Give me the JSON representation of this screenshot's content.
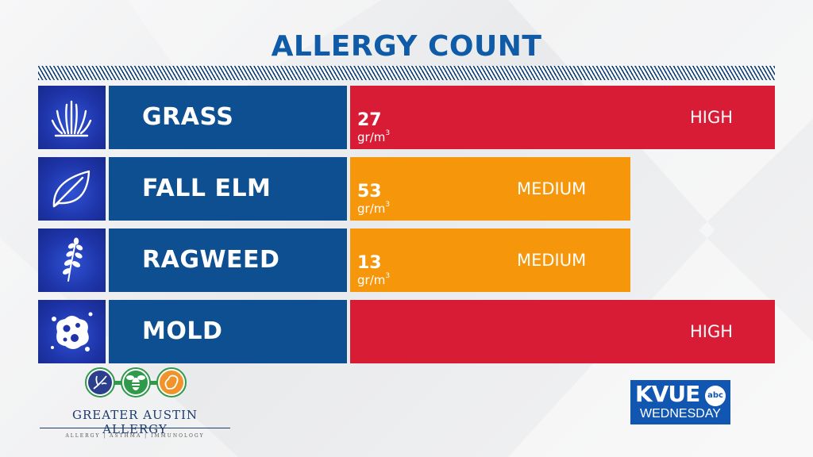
{
  "title": "ALLERGY COUNT",
  "colors": {
    "title": "#0f5ba7",
    "name_panel": "#0d4f90",
    "icon_panel": "#1e34a8",
    "high": "#d91c35",
    "medium": "#f6960b"
  },
  "rows": [
    {
      "icon": "grass-icon",
      "name": "GRASS",
      "count": "27",
      "unit": "gr/m",
      "unit_sup": "3",
      "level": "HIGH",
      "level_fraction": 1.0
    },
    {
      "icon": "leaf-icon",
      "name": "FALL ELM",
      "count": "53",
      "unit": "gr/m",
      "unit_sup": "3",
      "level": "MEDIUM",
      "level_fraction": 0.66
    },
    {
      "icon": "ragweed-icon",
      "name": "RAGWEED",
      "count": "13",
      "unit": "gr/m",
      "unit_sup": "3",
      "level": "MEDIUM",
      "level_fraction": 0.66
    },
    {
      "icon": "mold-icon",
      "name": "MOLD",
      "count": "",
      "unit": "",
      "unit_sup": "",
      "level": "HIGH",
      "level_fraction": 1.0
    }
  ],
  "sponsor": {
    "name": "GREATER AUSTIN ALLERGY",
    "tagline": "ALLERGY | ASTHMA | IMMUNOLOGY",
    "icons": [
      "plant-circle-icon",
      "bee-circle-icon",
      "peanut-circle-icon"
    ]
  },
  "station": {
    "name": "KVUE",
    "network": "abc",
    "day": "WEDNESDAY"
  }
}
